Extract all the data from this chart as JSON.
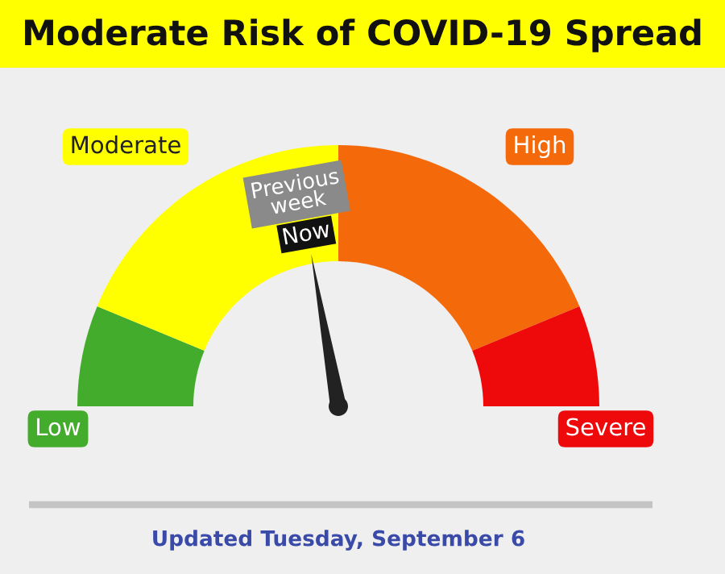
{
  "chart_data": {
    "type": "donut",
    "title": "Moderate Risk of COVID-19 Spread",
    "categories": [
      "Low",
      "Moderate",
      "High",
      "Severe"
    ],
    "values": [
      12.5,
      37.5,
      37.5,
      12.5
    ],
    "colors": [
      "#44ac2c",
      "#ffff00",
      "#f46a0a",
      "#ee0a0a"
    ],
    "needle": "Moderate",
    "annotations": [
      "Previous\nweek",
      "Now",
      "Updated Tuesday, September 6"
    ]
  }
}
